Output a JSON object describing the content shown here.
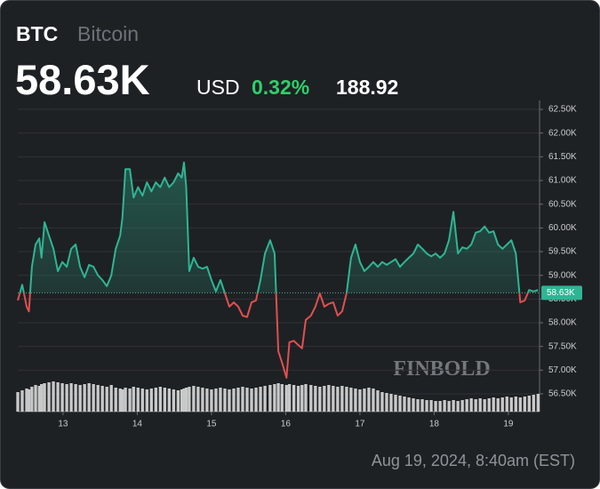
{
  "header": {
    "ticker": "BTC",
    "name": "Bitcoin",
    "price": "58.63K",
    "currency": "USD",
    "change_pct": "0.32%",
    "change": "188.92"
  },
  "watermark": "FINBOLD",
  "footer": "Aug 19, 2024, 8:40am (EST)",
  "chart_data": {
    "type": "line",
    "x": [
      12.39,
      12.45,
      12.51,
      12.54,
      12.58,
      12.63,
      12.68,
      12.71,
      12.75,
      12.81,
      12.87,
      12.93,
      12.99,
      13.05,
      13.11,
      13.17,
      13.23,
      13.29,
      13.35,
      13.41,
      13.47,
      13.53,
      13.59,
      13.65,
      13.71,
      13.77,
      13.8,
      13.84,
      13.9,
      13.95,
      14.01,
      14.07,
      14.13,
      14.19,
      14.25,
      14.31,
      14.37,
      14.43,
      14.49,
      14.55,
      14.6,
      14.63,
      14.66,
      14.7,
      14.76,
      14.82,
      14.88,
      14.94,
      15.0,
      15.06,
      15.12,
      15.18,
      15.24,
      15.3,
      15.36,
      15.42,
      15.48,
      15.54,
      15.6,
      15.66,
      15.72,
      15.79,
      15.85,
      15.9,
      15.95,
      16.01,
      16.05,
      16.11,
      16.17,
      16.22,
      16.27,
      16.34,
      16.4,
      16.46,
      16.52,
      16.58,
      16.64,
      16.7,
      16.76,
      16.82,
      16.88,
      16.94,
      17.0,
      17.06,
      17.12,
      17.18,
      17.24,
      17.3,
      17.36,
      17.42,
      17.48,
      17.54,
      17.6,
      17.66,
      17.72,
      17.78,
      17.84,
      17.9,
      17.96,
      18.02,
      18.08,
      18.14,
      18.2,
      18.26,
      18.32,
      18.38,
      18.44,
      18.5,
      18.56,
      18.62,
      18.68,
      18.74,
      18.8,
      18.86,
      18.92,
      18.98,
      19.04,
      19.1,
      19.16,
      19.22,
      19.28,
      19.34,
      19.4
    ],
    "values": [
      58.47,
      58.8,
      58.34,
      58.24,
      59.18,
      59.65,
      59.78,
      59.37,
      60.12,
      59.84,
      59.56,
      59.09,
      59.28,
      59.18,
      59.56,
      59.65,
      59.18,
      58.96,
      59.22,
      59.18,
      59.0,
      58.9,
      58.77,
      59.0,
      59.56,
      59.84,
      60.21,
      61.24,
      61.24,
      60.64,
      60.86,
      60.68,
      60.96,
      60.77,
      60.96,
      60.86,
      61.06,
      60.86,
      60.96,
      61.15,
      61.06,
      61.38,
      60.86,
      59.09,
      59.37,
      59.18,
      59.14,
      59.18,
      58.9,
      58.66,
      58.9,
      58.62,
      58.34,
      58.43,
      58.34,
      58.15,
      58.12,
      58.43,
      58.47,
      58.9,
      59.46,
      59.74,
      59.46,
      57.4,
      57.16,
      56.84,
      57.59,
      57.62,
      57.53,
      57.46,
      58.06,
      58.15,
      58.34,
      58.62,
      58.34,
      58.4,
      58.43,
      58.15,
      58.24,
      58.62,
      59.37,
      59.65,
      59.28,
      59.09,
      59.18,
      59.28,
      59.18,
      59.28,
      59.22,
      59.28,
      59.34,
      59.18,
      59.28,
      59.37,
      59.46,
      59.65,
      59.56,
      59.46,
      59.4,
      59.46,
      59.37,
      59.46,
      59.74,
      60.34,
      59.46,
      59.59,
      59.56,
      59.65,
      59.9,
      59.93,
      60.03,
      59.9,
      59.93,
      59.65,
      59.56,
      59.65,
      59.74,
      59.46,
      58.43,
      58.47,
      58.69,
      58.66,
      58.69
    ],
    "volume": [
      22,
      24,
      26,
      25,
      28,
      30,
      29,
      31,
      32,
      33,
      34,
      33,
      32,
      31,
      32,
      31,
      30,
      31,
      32,
      31,
      30,
      29,
      28,
      30,
      27,
      26,
      25,
      27,
      26,
      28,
      27,
      26,
      25,
      26,
      27,
      28,
      27,
      26,
      25,
      24,
      25,
      26,
      27,
      28,
      29,
      28,
      27,
      26,
      25,
      26,
      27,
      26,
      25,
      26,
      27,
      28,
      27,
      26,
      27,
      28,
      29,
      30,
      31,
      32,
      31,
      30,
      31,
      30,
      29,
      30,
      31,
      30,
      29,
      28,
      29,
      30,
      29,
      28,
      29,
      28,
      27,
      26,
      25,
      26,
      27,
      26,
      24,
      22,
      21,
      20,
      19,
      18,
      17,
      16,
      15,
      14,
      14,
      13,
      13,
      12,
      12,
      13,
      12,
      13,
      12,
      13,
      14,
      15,
      14,
      15,
      14,
      15,
      16,
      15,
      16,
      17,
      16,
      17,
      16,
      17,
      18,
      19,
      20
    ],
    "color_up": "#2fb594",
    "color_down": "#e0504f",
    "volume_color": "#c9c9c9",
    "baseline": {
      "value": 58.63,
      "label": "58.63K"
    },
    "xlim": [
      12.39,
      19.42
    ],
    "xticks": [
      13,
      14,
      15,
      16,
      17,
      18,
      19
    ],
    "ylim": [
      56.5,
      62.5
    ],
    "yticks": [
      {
        "value": 56.5,
        "label": "56.50K"
      },
      {
        "value": 57,
        "label": "57.00K"
      },
      {
        "value": 57.5,
        "label": "57.50K"
      },
      {
        "value": 58,
        "label": "58.00K"
      },
      {
        "value": 58.5,
        "label": "58.50K"
      },
      {
        "value": 59,
        "label": "59.00K"
      },
      {
        "value": 59.5,
        "label": "59.50K"
      },
      {
        "value": 60,
        "label": "60.00K"
      },
      {
        "value": 60.5,
        "label": "60.50K"
      },
      {
        "value": 61,
        "label": "61.00K"
      },
      {
        "value": 61.5,
        "label": "61.50K"
      },
      {
        "value": 62,
        "label": "62.00K"
      },
      {
        "value": 62.5,
        "label": "62.50K"
      }
    ],
    "grid": true
  }
}
